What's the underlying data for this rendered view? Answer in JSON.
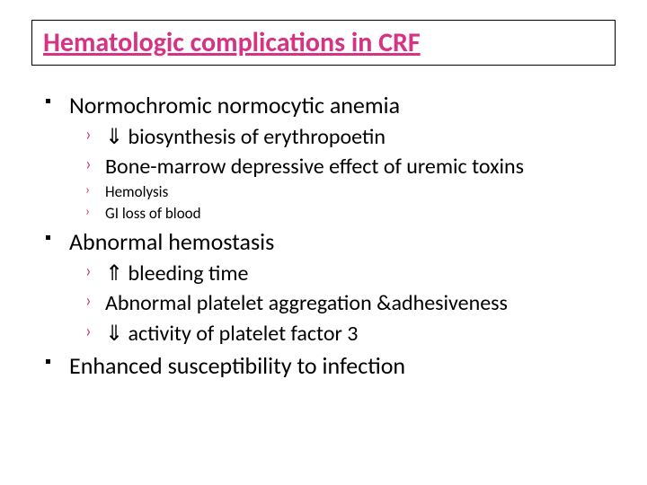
{
  "title": "Hematologic complications in CRF",
  "colors": {
    "accent": "#d63384",
    "text": "#000000",
    "border": "#000000",
    "background": "#ffffff"
  },
  "typography": {
    "title_fontsize": 30,
    "main_fontsize": 26,
    "sub_fontsize": 24,
    "small_fontsize": 17,
    "font_family": "Calibri"
  },
  "items": [
    {
      "text": "Normochromic normocytic anemia",
      "subs": [
        {
          "text": "⇓ biosynthesis of erythropoetin",
          "size": "normal"
        },
        {
          "text": "Bone-marrow depressive effect of uremic toxins",
          "size": "normal"
        },
        {
          "text": "Hemolysis",
          "size": "small"
        },
        {
          "text": "GI loss of blood",
          "size": "small"
        }
      ]
    },
    {
      "text": "Abnormal hemostasis",
      "subs": [
        {
          "text": "⇑ bleeding time",
          "size": "normal"
        },
        {
          "text": "Abnormal platelet aggregation &adhesiveness",
          "size": "normal"
        },
        {
          "text": "⇓ activity of platelet factor 3",
          "size": "normal"
        }
      ]
    },
    {
      "text": "Enhanced susceptibility to infection",
      "subs": []
    }
  ],
  "markers": {
    "sub_marker": "›"
  }
}
